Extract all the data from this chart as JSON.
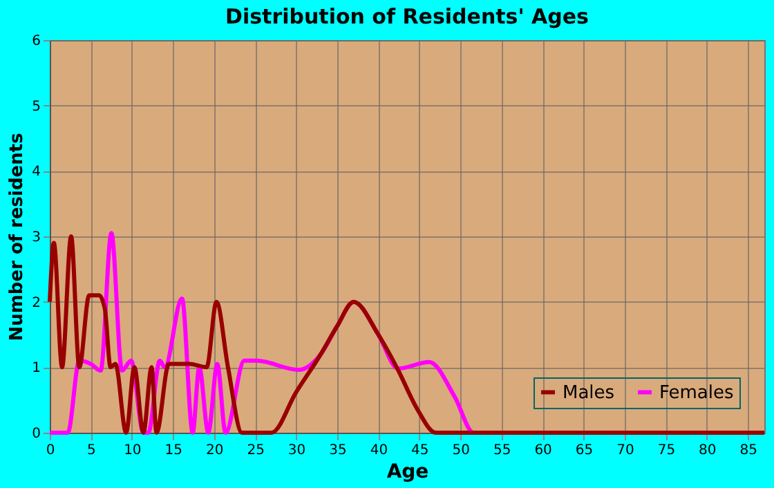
{
  "chart_data": {
    "type": "line",
    "title": "Distribution of Residents' Ages",
    "xlabel": "Age",
    "ylabel": "Number of residents",
    "xlim": [
      0,
      87
    ],
    "xticks": [
      0,
      5,
      10,
      15,
      20,
      25,
      30,
      35,
      40,
      45,
      50,
      55,
      60,
      65,
      70,
      75,
      80,
      85
    ],
    "ylim": [
      0,
      6
    ],
    "yticks": [
      0,
      1,
      2,
      3,
      4,
      5,
      6
    ],
    "grid": true,
    "legend": "bottom right",
    "marker": "none",
    "line_style": "solid",
    "series": [
      {
        "name": "Males",
        "color": "#990000",
        "x": [
          0,
          0.5,
          1.5,
          2.6,
          3.6,
          4.8,
          6.0,
          6.7,
          7.4,
          8,
          9.3,
          10.3,
          11.4,
          12.4,
          13,
          14.5,
          17,
          19.1,
          20.3,
          21.7,
          23.4,
          27,
          30,
          33,
          35,
          37,
          40,
          42.4,
          44.7,
          47,
          87
        ],
        "values": [
          2,
          2.9,
          1,
          3,
          1,
          2.1,
          2.1,
          1.9,
          1,
          1.05,
          0,
          1,
          0,
          1,
          0,
          1.05,
          1.05,
          1,
          2,
          1,
          0,
          0,
          0.62,
          1.2,
          1.63,
          2,
          1.5,
          0.96,
          0.37,
          0,
          0
        ]
      },
      {
        "name": "Females",
        "color": "#ff00ff",
        "x": [
          0,
          2.2,
          3.6,
          5,
          6.2,
          7.5,
          8.8,
          9.9,
          11.4,
          12,
          13.4,
          14,
          16.1,
          17.4,
          18.2,
          19.3,
          20.4,
          21.4,
          23.7,
          25.2,
          30.3,
          33,
          35,
          37,
          40,
          42.4,
          46.2,
          49.3,
          51.6,
          87
        ],
        "values": [
          0,
          0,
          1.1,
          1.05,
          0.95,
          3.05,
          0.95,
          1.1,
          0,
          0,
          1.1,
          1,
          2.05,
          0,
          1,
          0,
          1.05,
          0,
          1.1,
          1.1,
          0.96,
          1.2,
          1.63,
          2,
          1.5,
          0.98,
          1.08,
          0.55,
          0,
          0
        ]
      }
    ]
  }
}
